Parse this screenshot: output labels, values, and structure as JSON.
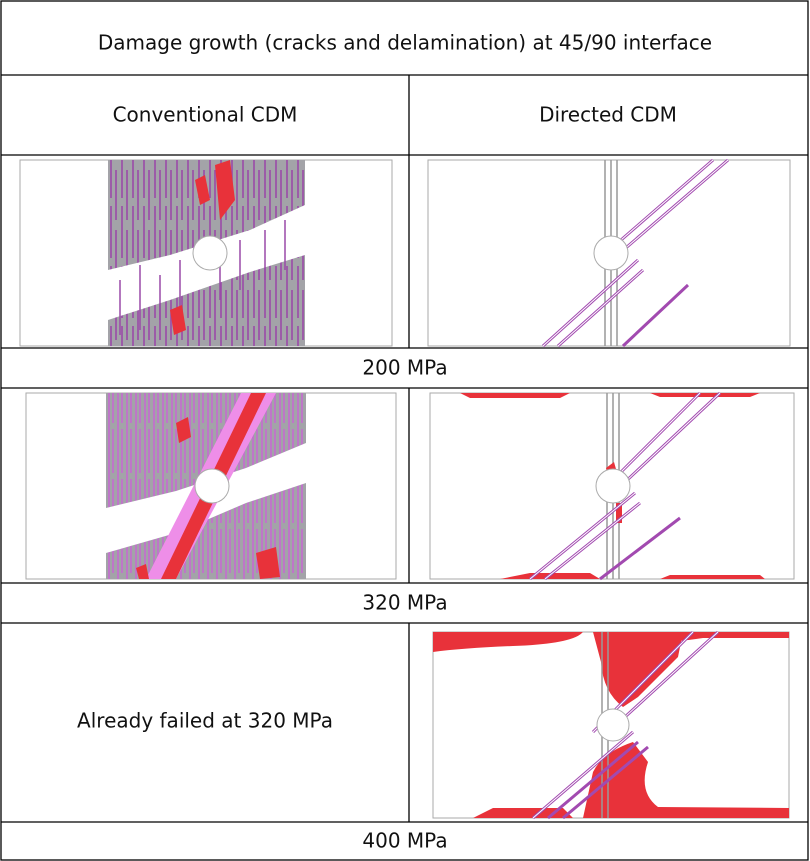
{
  "table": {
    "title": "Damage growth (cracks and delamination) at 45/90 interface",
    "columns": [
      "Conventional CDM",
      "Directed CDM"
    ],
    "rows": [
      {
        "label": "200 MPa"
      },
      {
        "label": "320 MPa"
      },
      {
        "left_text": "Already failed at 320 MPa",
        "label": "400 MPa"
      }
    ]
  }
}
